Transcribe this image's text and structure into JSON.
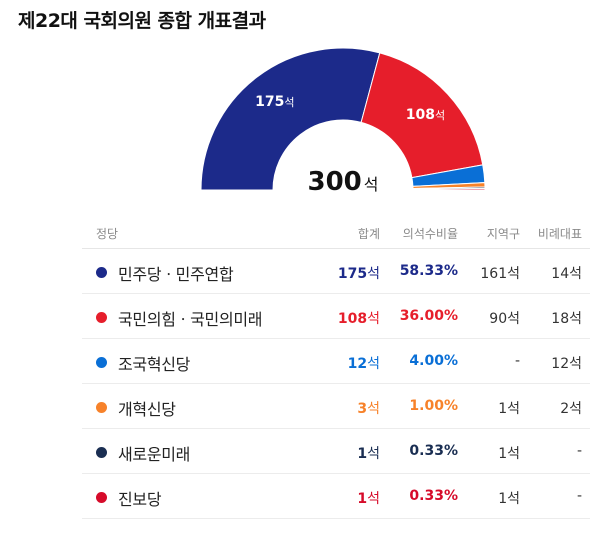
{
  "title": "제22대 국회의원 종합 개표결과",
  "total": {
    "value": "300",
    "unit": "석"
  },
  "colors": {
    "minjoo": "#1c2a8a",
    "ppp": "#e61e2b",
    "rebuilding": "#0a6fd6",
    "reform": "#f7822a",
    "newfuture": "#1a2e52",
    "progressive": "#d60b2a"
  },
  "table": {
    "headers": {
      "party": "정당",
      "seats": "합계",
      "pct": "의석수비율",
      "district": "지역구",
      "proportional": "비례대표"
    },
    "rows": [
      {
        "party": "민주당ㆍ민주연합",
        "seats": "175",
        "unit": "석",
        "pct": "58.33%",
        "district": "161석",
        "proportional": "14석",
        "color": "#1c2a8a"
      },
      {
        "party": "국민의힘ㆍ국민의미래",
        "seats": "108",
        "unit": "석",
        "pct": "36.00%",
        "district": "90석",
        "proportional": "18석",
        "color": "#e61e2b"
      },
      {
        "party": "조국혁신당",
        "seats": "12",
        "unit": "석",
        "pct": "4.00%",
        "district": "-",
        "proportional": "12석",
        "color": "#0a6fd6"
      },
      {
        "party": "개혁신당",
        "seats": "3",
        "unit": "석",
        "pct": "1.00%",
        "district": "1석",
        "proportional": "2석",
        "color": "#f7822a"
      },
      {
        "party": "새로운미래",
        "seats": "1",
        "unit": "석",
        "pct": "0.33%",
        "district": "1석",
        "proportional": "-",
        "color": "#1a2e52"
      },
      {
        "party": "진보당",
        "seats": "1",
        "unit": "석",
        "pct": "0.33%",
        "district": "1석",
        "proportional": "-",
        "color": "#d60b2a"
      }
    ]
  },
  "chart_data": {
    "type": "pie",
    "categories": [
      "민주당ㆍ민주연합",
      "국민의힘ㆍ국민의미래",
      "조국혁신당",
      "개혁신당",
      "새로운미래",
      "진보당"
    ],
    "values": [
      175,
      108,
      12,
      3,
      1,
      1
    ],
    "slice_labels": [
      "175석",
      "108석",
      "",
      "",
      "",
      ""
    ],
    "colors": [
      "#1c2a8a",
      "#e61e2b",
      "#0a6fd6",
      "#f7822a",
      "#1a2e52",
      "#d60b2a"
    ],
    "title": "제22대 국회의원 종합 개표결과",
    "center_label": "300석"
  }
}
